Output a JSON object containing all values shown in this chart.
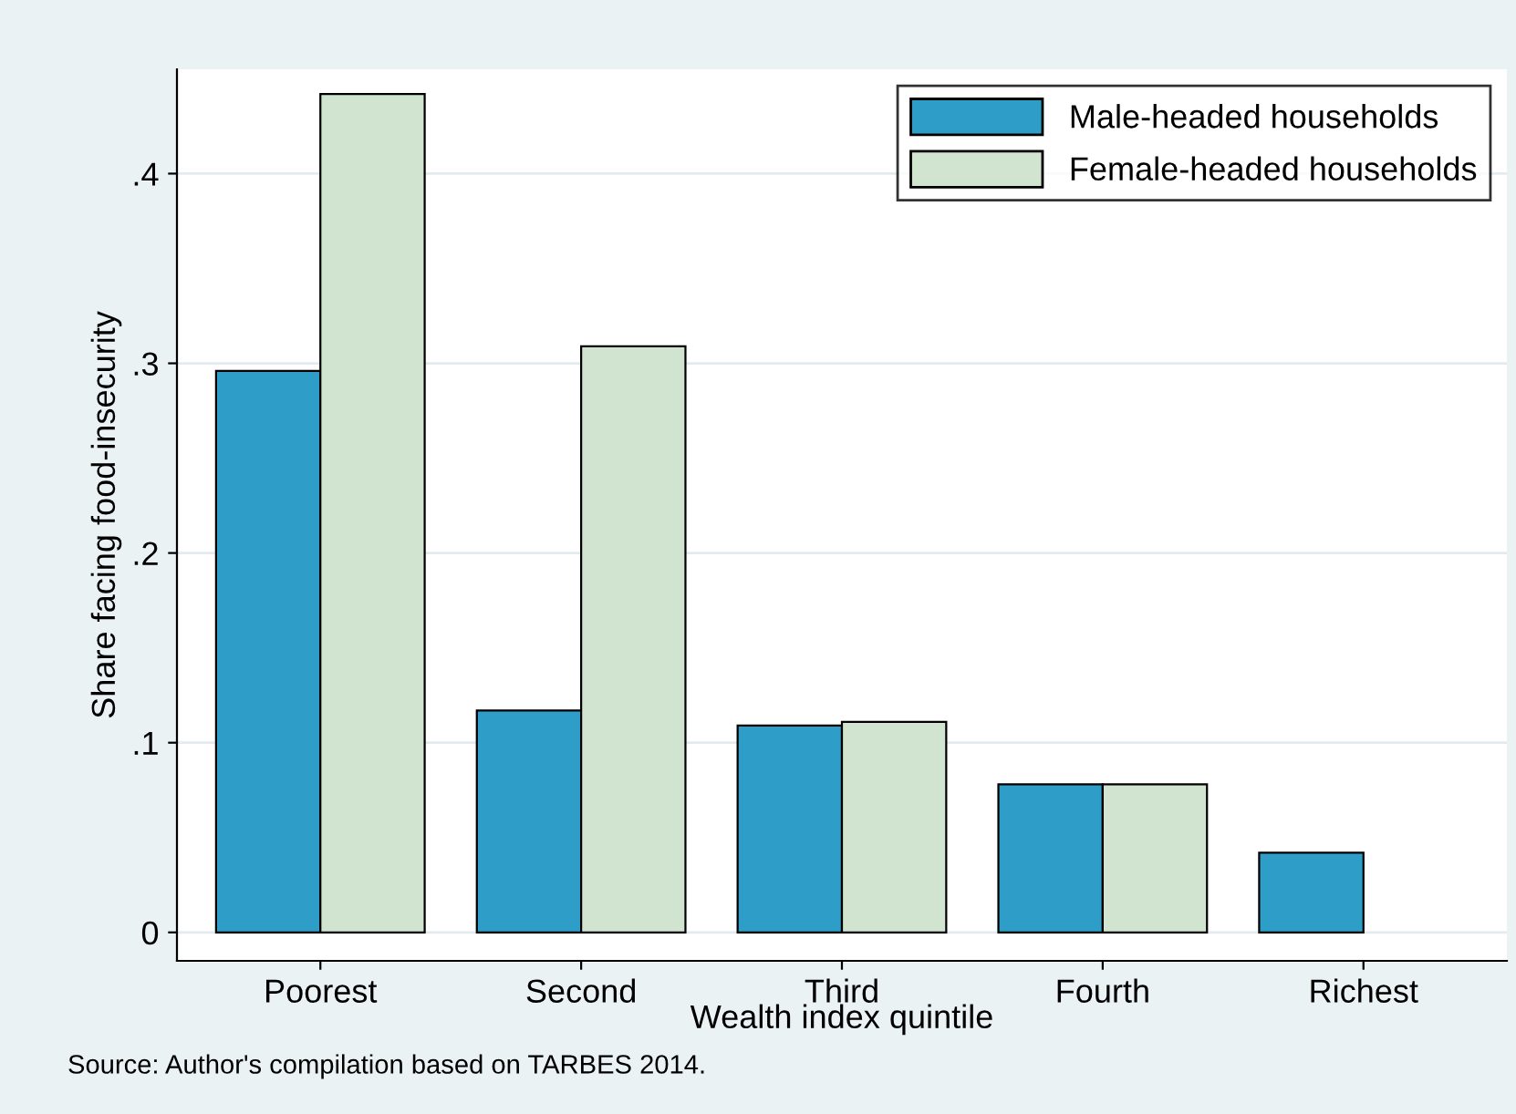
{
  "chart_data": {
    "type": "bar",
    "xlabel": "Wealth index quintile",
    "ylabel": "Share facing food-insecurity",
    "categories": [
      "Poorest",
      "Second",
      "Third",
      "Fourth",
      "Richest"
    ],
    "series": [
      {
        "name": "Male-headed households",
        "color": "#2e9ec9",
        "values": [
          0.296,
          0.117,
          0.109,
          0.078,
          0.042
        ]
      },
      {
        "name": "Female-headed households",
        "color": "#d0e4cf",
        "values": [
          0.442,
          0.309,
          0.111,
          0.078,
          null
        ]
      }
    ],
    "ylim": [
      -0.015,
      0.455
    ],
    "yticks": [
      0,
      {
        "value": 0.1,
        "label": ".1"
      },
      {
        "value": 0.2,
        "label": ".2"
      },
      {
        "value": 0.3,
        "label": ".3"
      },
      {
        "value": 0.4,
        "label": ".4"
      }
    ],
    "grid": "y",
    "legend": "top right",
    "annotations": [
      "Source: Author's compilation based on TARBES 2014."
    ]
  }
}
